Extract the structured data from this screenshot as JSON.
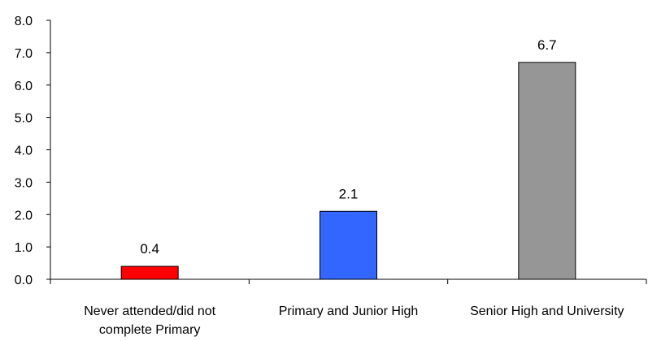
{
  "chart_data": {
    "type": "bar",
    "categories": [
      [
        "Never attended/did not",
        "complete Primary"
      ],
      [
        "Primary and Junior High"
      ],
      [
        "Senior High and University"
      ]
    ],
    "values": [
      0.4,
      2.1,
      6.7
    ],
    "value_labels": [
      "0.4",
      "2.1",
      "6.7"
    ],
    "colors": [
      "#ff0000",
      "#3366ff",
      "#969696"
    ],
    "bar_border_color": "#000000",
    "ylim": [
      0,
      8
    ],
    "yticks": [
      "0.0",
      "1.0",
      "2.0",
      "3.0",
      "4.0",
      "5.0",
      "6.0",
      "7.0",
      "8.0"
    ],
    "grid": false,
    "legend": "none",
    "title": "",
    "xlabel": "",
    "ylabel": ""
  }
}
